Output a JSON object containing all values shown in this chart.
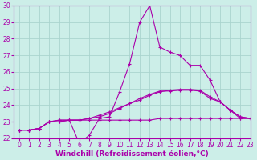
{
  "xlabel": "Windchill (Refroidissement éolien,°C)",
  "background_color": "#cceee8",
  "grid_color": "#aad4ce",
  "line_color": "#aa00aa",
  "x_hours": [
    0,
    1,
    2,
    3,
    4,
    5,
    6,
    7,
    8,
    9,
    10,
    11,
    12,
    13,
    14,
    15,
    16,
    17,
    18,
    19,
    20,
    21,
    22,
    23
  ],
  "series1": [
    22.5,
    22.5,
    22.6,
    23.0,
    23.0,
    23.1,
    21.7,
    22.2,
    23.2,
    23.3,
    24.8,
    26.5,
    29.0,
    30.0,
    27.5,
    27.2,
    27.0,
    26.4,
    26.4,
    25.5,
    24.2,
    23.7,
    23.2,
    23.2
  ],
  "series2": [
    22.5,
    22.5,
    22.6,
    23.0,
    23.0,
    23.1,
    23.1,
    23.1,
    23.1,
    23.1,
    23.1,
    23.1,
    23.1,
    23.1,
    23.2,
    23.2,
    23.2,
    23.2,
    23.2,
    23.2,
    23.2,
    23.2,
    23.2,
    23.2
  ],
  "series3": [
    22.5,
    22.5,
    22.6,
    23.0,
    23.1,
    23.1,
    23.1,
    23.2,
    23.3,
    23.5,
    23.8,
    24.1,
    24.3,
    24.6,
    24.8,
    24.9,
    24.95,
    24.95,
    24.9,
    24.5,
    24.2,
    23.7,
    23.3,
    23.2
  ],
  "series4": [
    22.5,
    22.5,
    22.6,
    23.0,
    23.1,
    23.1,
    23.1,
    23.2,
    23.4,
    23.6,
    23.85,
    24.1,
    24.4,
    24.65,
    24.85,
    24.85,
    24.9,
    24.9,
    24.85,
    24.4,
    24.2,
    23.7,
    23.3,
    23.2
  ],
  "ylim": [
    22,
    30
  ],
  "xlim": [
    -0.5,
    23
  ],
  "yticks": [
    22,
    23,
    24,
    25,
    26,
    27,
    28,
    29,
    30
  ],
  "xticks": [
    0,
    1,
    2,
    3,
    4,
    5,
    6,
    7,
    8,
    9,
    10,
    11,
    12,
    13,
    14,
    15,
    16,
    17,
    18,
    19,
    20,
    21,
    22,
    23
  ],
  "marker": "+",
  "markersize": 3,
  "linewidth": 0.8,
  "tick_fontsize": 5.5,
  "xlabel_fontsize": 6.5
}
